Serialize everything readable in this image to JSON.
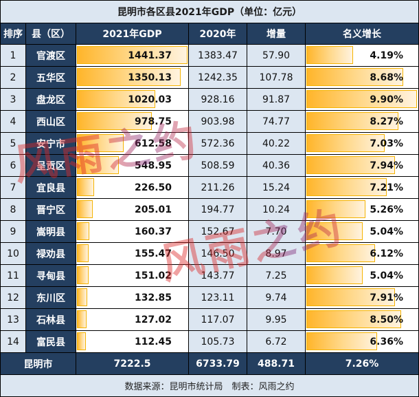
{
  "title": "昆明市各区县2021年GDP（单位：亿元）",
  "headers": {
    "rank": "排序",
    "county": "县（区）",
    "gdp2021": "2021年GDP",
    "gdp2020": "2020年",
    "increase": "增量",
    "growth": "名义增长"
  },
  "rows": [
    {
      "rank": "1",
      "name": "官渡区",
      "gdp2021": "1441.37",
      "gdp2020": "1383.47",
      "increase": "57.90",
      "growth": "4.19%"
    },
    {
      "rank": "2",
      "name": "五华区",
      "gdp2021": "1350.13",
      "gdp2020": "1242.35",
      "increase": "107.78",
      "growth": "8.68%"
    },
    {
      "rank": "3",
      "name": "盘龙区",
      "gdp2021": "1020.03",
      "gdp2020": "928.16",
      "increase": "91.87",
      "growth": "9.90%"
    },
    {
      "rank": "4",
      "name": "西山区",
      "gdp2021": "978.75",
      "gdp2020": "903.98",
      "increase": "74.77",
      "growth": "8.27%"
    },
    {
      "rank": "5",
      "name": "安宁市",
      "gdp2021": "612.58",
      "gdp2020": "572.36",
      "increase": "40.22",
      "growth": "7.03%"
    },
    {
      "rank": "6",
      "name": "呈贡区",
      "gdp2021": "548.95",
      "gdp2020": "508.59",
      "increase": "40.36",
      "growth": "7.94%"
    },
    {
      "rank": "7",
      "name": "宜良县",
      "gdp2021": "226.50",
      "gdp2020": "211.26",
      "increase": "15.24",
      "growth": "7.21%"
    },
    {
      "rank": "8",
      "name": "晋宁区",
      "gdp2021": "205.01",
      "gdp2020": "194.77",
      "increase": "10.24",
      "growth": "5.26%"
    },
    {
      "rank": "9",
      "name": "嵩明县",
      "gdp2021": "160.37",
      "gdp2020": "152.67",
      "increase": "7.70",
      "growth": "5.04%"
    },
    {
      "rank": "10",
      "name": "禄劝县",
      "gdp2021": "155.47",
      "gdp2020": "146.50",
      "increase": "8.97",
      "growth": "6.12%"
    },
    {
      "rank": "11",
      "name": "寻甸县",
      "gdp2021": "151.02",
      "gdp2020": "143.77",
      "increase": "7.25",
      "growth": "5.04%"
    },
    {
      "rank": "12",
      "name": "东川区",
      "gdp2021": "132.85",
      "gdp2020": "123.11",
      "increase": "9.74",
      "growth": "7.91%"
    },
    {
      "rank": "13",
      "name": "石林县",
      "gdp2021": "127.02",
      "gdp2020": "117.07",
      "increase": "9.95",
      "growth": "8.50%"
    },
    {
      "rank": "14",
      "name": "富民县",
      "gdp2021": "112.45",
      "gdp2020": "105.73",
      "increase": "6.72",
      "growth": "6.36%"
    }
  ],
  "total": {
    "name": "昆明市",
    "gdp2021": "7222.5",
    "gdp2020": "6733.79",
    "increase": "488.71",
    "growth": "7.26%"
  },
  "source": "数据来源：昆明市统计局　制表：风雨之约",
  "watermark": "风雨之约",
  "colors": {
    "header_bg": "#243F60",
    "light_bg": "#DCE6F1",
    "bar_start": "#FFB52A",
    "bar_end": "#FFF3E0",
    "bar_border": "#F5B300"
  }
}
